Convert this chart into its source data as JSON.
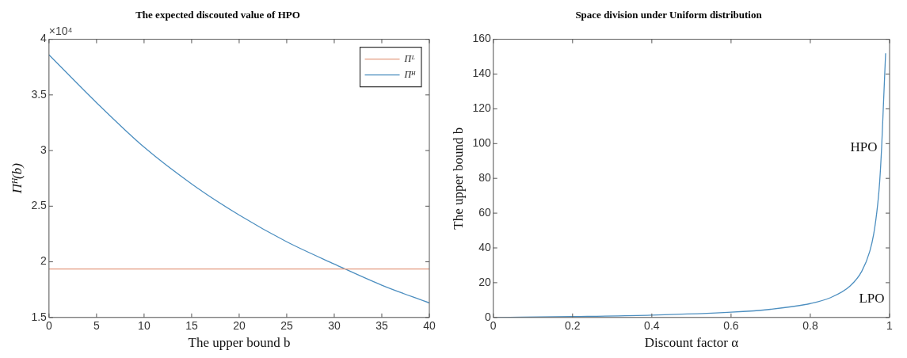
{
  "chart_data": [
    {
      "type": "line",
      "title": "The expected discouted value of HPO",
      "xlabel": "The upper bound b",
      "ylabel": "Πᴴ(b)",
      "series": [
        {
          "name": "Πᴸ",
          "color": "#e39b80",
          "x": [
            0,
            40
          ],
          "values": [
            1.935,
            1.935
          ]
        },
        {
          "name": "Πᴴ",
          "color": "#4d8fc0",
          "x": [
            0,
            5,
            10,
            15,
            20,
            25,
            30,
            35,
            40
          ],
          "values": [
            3.86,
            3.43,
            3.03,
            2.7,
            2.42,
            2.18,
            1.98,
            1.79,
            1.63
          ]
        }
      ],
      "xlim": [
        0,
        40
      ],
      "xticks": [
        0,
        5,
        10,
        15,
        20,
        25,
        30,
        35,
        40
      ],
      "ylim": [
        1.5,
        4
      ],
      "yticks": [
        1.5,
        2,
        2.5,
        3,
        3.5,
        4
      ],
      "annotations": [
        "×10⁴"
      ],
      "legend": "top right",
      "grid": false
    },
    {
      "type": "line",
      "title": "Space division under Uniform distribution",
      "xlabel": "Discount factor α",
      "ylabel": "The upper bound b",
      "series": [
        {
          "color": "#4d8fc0",
          "x": [
            0.01,
            0.2,
            0.4,
            0.6,
            0.7,
            0.8,
            0.85,
            0.9,
            0.93,
            0.95,
            0.96,
            0.97,
            0.975,
            0.98,
            0.985,
            0.99
          ],
          "values": [
            0,
            0.5,
            1.3,
            3,
            4.7,
            8,
            11.3,
            18,
            26.6,
            38,
            48,
            65,
            78,
            98,
            125,
            152
          ]
        }
      ],
      "xlim": [
        0,
        1
      ],
      "xticks": [
        0,
        0.2,
        0.4,
        0.6,
        0.8,
        1
      ],
      "ylim": [
        0,
        160
      ],
      "yticks": [
        0,
        20,
        40,
        60,
        80,
        100,
        120,
        140,
        160
      ],
      "annotations": [
        "HPO",
        "LPO"
      ],
      "legend": false,
      "grid": false
    }
  ]
}
